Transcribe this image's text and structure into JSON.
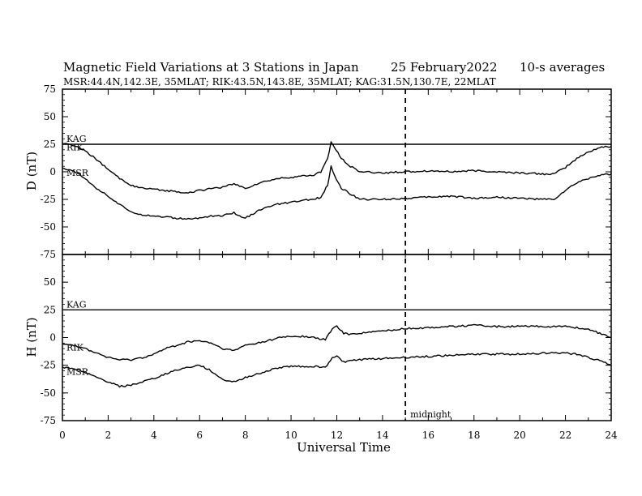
{
  "header": {
    "title": "Magnetic Field Variations at 3 Stations in Japan",
    "date": "25 February2022",
    "averaging": "10-s averages",
    "stations": "MSR:44.4N,142.3E, 35MLAT;  RIK:43.5N,143.8E, 35MLAT;  KAG:31.5N,130.7E, 22MLAT"
  },
  "chart_data": {
    "type": "line",
    "xlabel": "Universal Time",
    "x_ticks": [
      0,
      2,
      4,
      6,
      8,
      10,
      12,
      14,
      16,
      18,
      20,
      22,
      24
    ],
    "xlim": [
      0,
      24
    ],
    "midnight_line": {
      "x": 15,
      "label": "midnight"
    },
    "panels": [
      {
        "id": "D",
        "ylabel": "D (nT)",
        "ylim": [
          -75,
          75
        ],
        "y_ticks": [
          75,
          50,
          25,
          0,
          -25,
          -50,
          -75
        ],
        "series": [
          {
            "name": "KAG",
            "x": [
              0,
              24
            ],
            "values": [
              25,
              25
            ]
          },
          {
            "name": "RIK",
            "x": [
              0,
              0.5,
              1,
              1.5,
              2,
              2.5,
              3,
              3.5,
              4,
              4.5,
              5,
              5.5,
              6,
              6.5,
              7,
              7.5,
              8,
              8.5,
              9,
              9.5,
              10,
              10.5,
              11,
              11.3,
              11.6,
              11.75,
              11.9,
              12.2,
              12.6,
              13,
              14,
              15,
              16,
              17,
              18,
              19,
              20,
              21,
              21.5,
              22,
              22.5,
              23,
              23.5,
              24
            ],
            "values": [
              26,
              24,
              19,
              11,
              2,
              -6,
              -12,
              -15,
              -16,
              -17,
              -18,
              -19,
              -17,
              -15,
              -14,
              -11,
              -15,
              -11,
              -8,
              -6,
              -5,
              -4,
              -3,
              0,
              12,
              27,
              22,
              12,
              5,
              0,
              -1,
              0,
              1,
              0,
              1,
              0,
              -1,
              -2,
              -2,
              4,
              12,
              18,
              22,
              23
            ]
          },
          {
            "name": "MSR",
            "x": [
              0,
              0.5,
              1,
              1.5,
              2,
              2.5,
              3,
              3.5,
              4,
              4.5,
              5,
              5.5,
              6,
              6.5,
              7,
              7.5,
              8,
              8.5,
              9,
              9.5,
              10,
              10.5,
              11,
              11.3,
              11.6,
              11.75,
              11.9,
              12.2,
              12.6,
              13,
              14,
              15,
              16,
              17,
              18,
              19,
              20,
              21,
              21.5,
              22,
              22.5,
              23,
              23.5,
              24
            ],
            "values": [
              3,
              1,
              -6,
              -15,
              -22,
              -30,
              -36,
              -39,
              -40,
              -41,
              -42,
              -43,
              -42,
              -40,
              -40,
              -37,
              -42,
              -36,
              -32,
              -29,
              -28,
              -26,
              -25,
              -23,
              -12,
              5,
              -3,
              -15,
              -20,
              -25,
              -25,
              -24,
              -23,
              -22,
              -24,
              -23,
              -24,
              -25,
              -25,
              -17,
              -10,
              -6,
              -3,
              -2
            ]
          }
        ]
      },
      {
        "id": "H",
        "ylabel": "H (nT)",
        "ylim": [
          -75,
          75
        ],
        "y_ticks": [
          75,
          50,
          25,
          0,
          -25,
          -50,
          -75
        ],
        "series": [
          {
            "name": "KAG",
            "x": [
              0,
              24
            ],
            "values": [
              25,
              25
            ]
          },
          {
            "name": "RIK",
            "x": [
              0,
              0.5,
              1,
              1.5,
              2,
              2.5,
              3,
              3.5,
              4,
              4.5,
              5,
              5.5,
              6,
              6.5,
              7,
              7.5,
              8,
              8.5,
              9,
              9.5,
              10,
              10.5,
              11,
              11.5,
              11.8,
              12,
              12.3,
              12.6,
              13,
              14,
              15,
              16,
              17,
              18,
              19,
              20,
              21,
              21.5,
              22,
              22.5,
              23,
              23.5,
              24
            ],
            "values": [
              -5,
              -7,
              -10,
              -14,
              -18,
              -20,
              -20,
              -18,
              -15,
              -10,
              -7,
              -4,
              -3,
              -5,
              -10,
              -12,
              -7,
              -5,
              -3,
              0,
              1,
              1,
              0,
              -2,
              8,
              10,
              4,
              3,
              4,
              6,
              8,
              9,
              10,
              11,
              10,
              10,
              10,
              10,
              10,
              9,
              7,
              4,
              0
            ]
          },
          {
            "name": "MSR",
            "x": [
              0,
              0.5,
              1,
              1.5,
              2,
              2.5,
              3,
              3.5,
              4,
              4.5,
              5,
              5.5,
              6,
              6.5,
              7,
              7.5,
              8,
              8.5,
              9,
              9.5,
              10,
              10.5,
              11,
              11.5,
              11.8,
              12,
              12.3,
              12.6,
              13,
              14,
              15,
              16,
              17,
              18,
              19,
              20,
              21,
              21.5,
              22,
              22.5,
              23,
              23.5,
              24
            ],
            "values": [
              -27,
              -28,
              -32,
              -36,
              -40,
              -44,
              -43,
              -40,
              -37,
              -33,
              -29,
              -27,
              -25,
              -30,
              -38,
              -40,
              -36,
              -33,
              -30,
              -27,
              -26,
              -26,
              -26,
              -27,
              -18,
              -17,
              -22,
              -21,
              -20,
              -19,
              -18,
              -17,
              -16,
              -15,
              -15,
              -15,
              -14,
              -14,
              -14,
              -15,
              -18,
              -21,
              -25
            ]
          }
        ]
      }
    ]
  }
}
